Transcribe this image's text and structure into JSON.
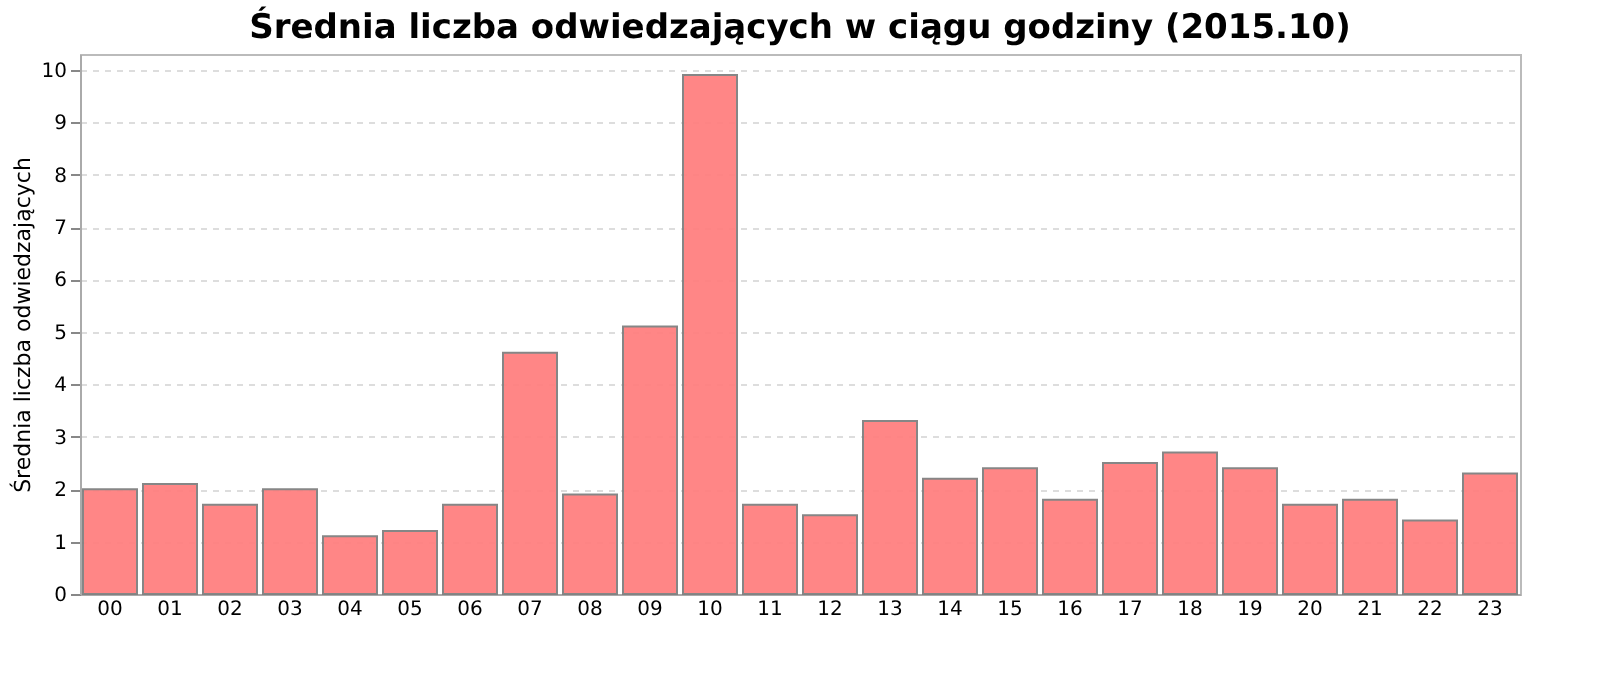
{
  "chart_data": {
    "type": "bar",
    "title": "Średnia liczba odwiedzających w ciągu godziny (2015.10)",
    "ylabel": "Średnia liczba odwiedzających",
    "categories": [
      "00",
      "01",
      "02",
      "03",
      "04",
      "05",
      "06",
      "07",
      "08",
      "09",
      "10",
      "11",
      "12",
      "13",
      "14",
      "15",
      "16",
      "17",
      "18",
      "19",
      "20",
      "21",
      "22",
      "23"
    ],
    "values": [
      2.0,
      2.1,
      1.7,
      2.0,
      1.1,
      1.2,
      1.7,
      4.6,
      1.9,
      5.1,
      9.9,
      1.7,
      1.5,
      3.3,
      2.2,
      2.4,
      1.8,
      2.5,
      2.7,
      2.4,
      1.7,
      1.8,
      1.4,
      2.3
    ],
    "color": "#ff8080",
    "ylim": [
      0,
      10.3
    ],
    "yticks": [
      0,
      1,
      2,
      3,
      4,
      5,
      6,
      7,
      8,
      9,
      10
    ],
    "grid": "y"
  }
}
